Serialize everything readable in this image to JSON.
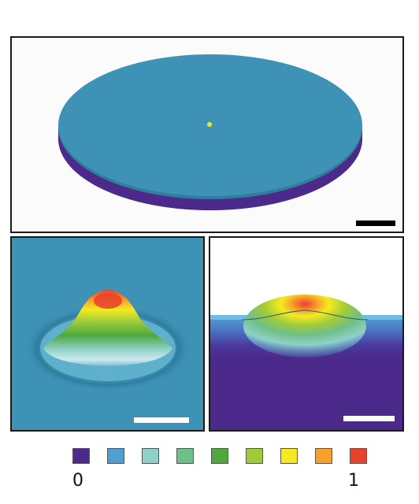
{
  "colorbar": {
    "min_label": "0",
    "max_label": "1",
    "colors": [
      "#4b2a8c",
      "#4fa0d0",
      "#8fd1c8",
      "#6fbf8a",
      "#4ea83e",
      "#9fcb3a",
      "#f5ea21",
      "#f7a12a",
      "#e8412c"
    ]
  },
  "colors": {
    "disk_top": "#3d92b6",
    "disk_side": "#4b2a8c",
    "scale_bar_top": "#000000",
    "scale_bar_bottom": "#ffffff"
  },
  "panels": [
    {
      "id": "top",
      "view": "3d-disk"
    },
    {
      "id": "bottom-left",
      "view": "3d-bump"
    },
    {
      "id": "bottom-right",
      "view": "cross-section"
    }
  ]
}
